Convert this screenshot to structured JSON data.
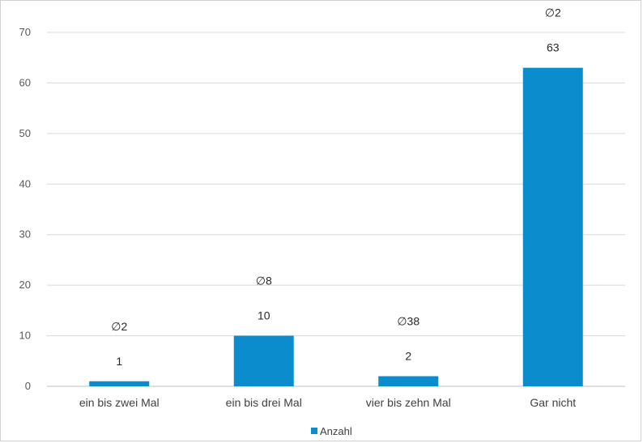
{
  "chart_data": {
    "type": "bar",
    "title": "",
    "xlabel": "",
    "ylabel": "",
    "categories": [
      "ein bis zwei Mal",
      "ein bis drei Mal",
      "vier bis zehn Mal",
      "Gar nicht"
    ],
    "series": [
      {
        "name": "Anzahl",
        "color": "#0a8ccd",
        "values": [
          1,
          10,
          2,
          63
        ],
        "data_labels": [
          "1",
          "10",
          "2",
          "63"
        ],
        "annotations": [
          "∅2",
          "∅8",
          "∅38",
          "∅2"
        ]
      }
    ],
    "ylim": [
      0,
      70
    ],
    "yticks": [
      0,
      10,
      20,
      30,
      40,
      50,
      60,
      70
    ],
    "ytick_labels": [
      "0",
      "10",
      "20",
      "30",
      "40",
      "50",
      "60",
      "70"
    ],
    "grid": true,
    "legend": "bottom",
    "colors": {
      "bar": "#0a8ccd",
      "grid": "#d9d9d9",
      "axis": "#bfbfbf"
    }
  },
  "legend": {
    "label": "Anzahl"
  }
}
